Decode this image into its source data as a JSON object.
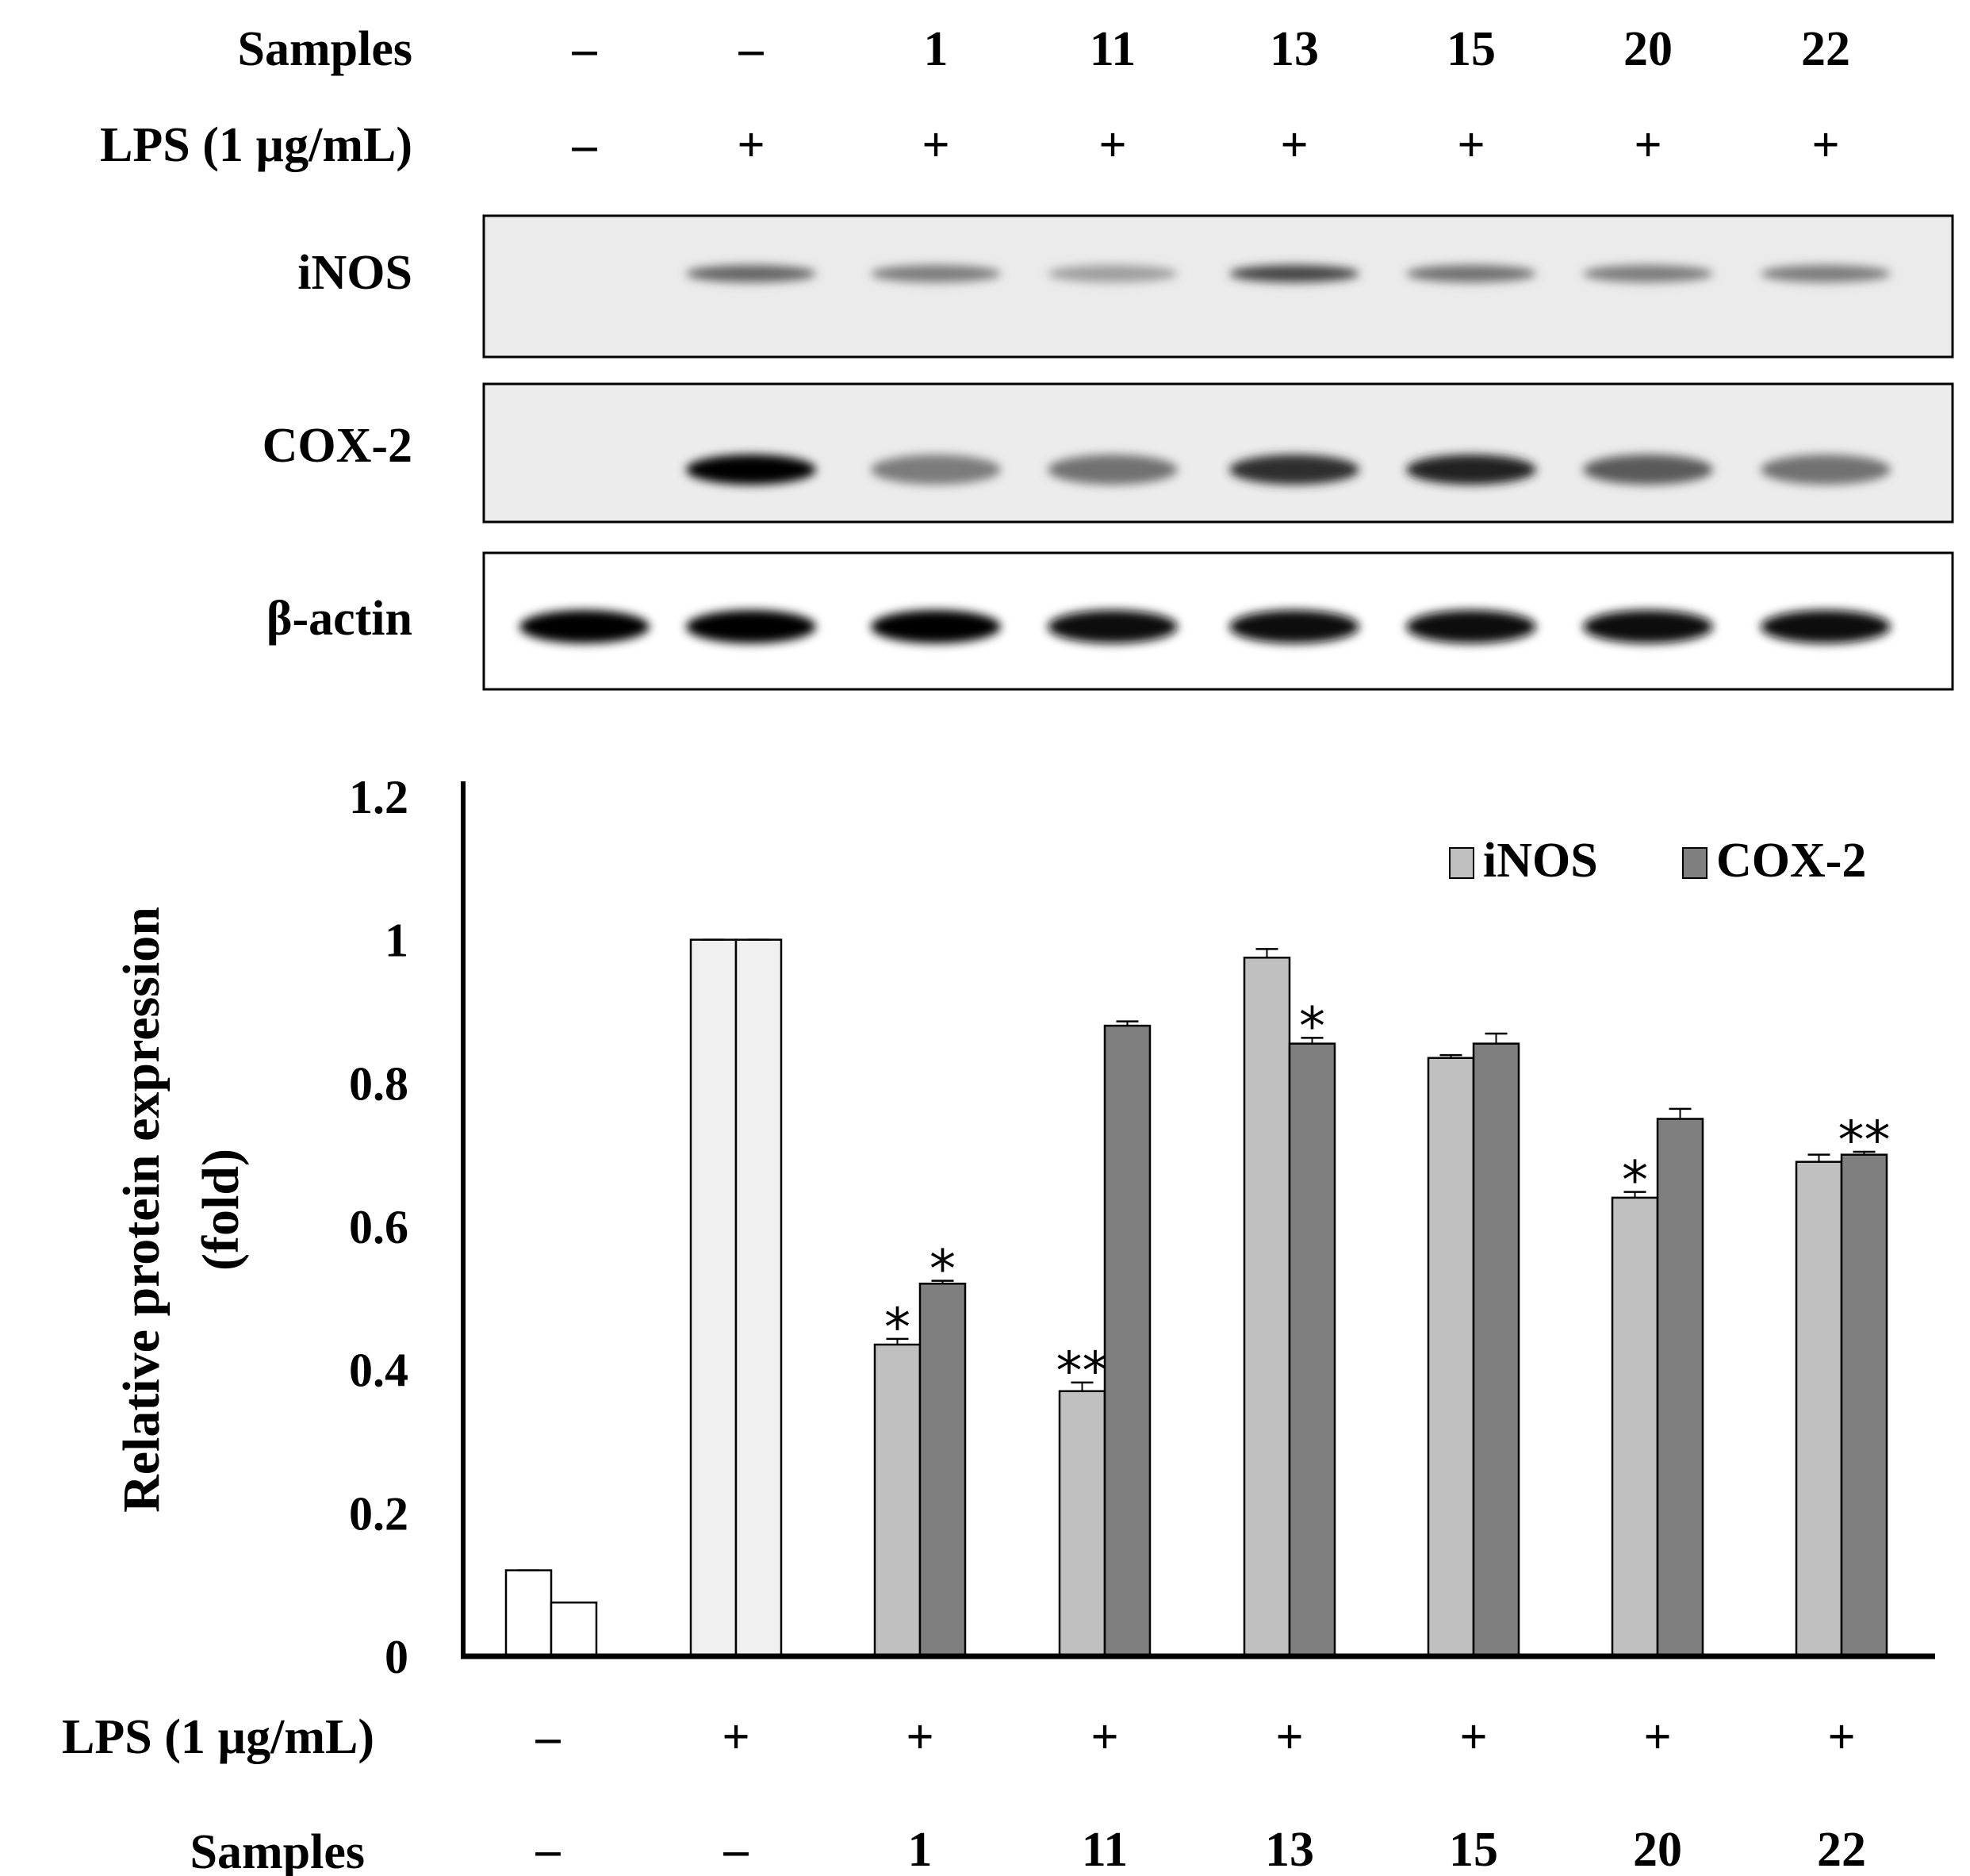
{
  "blot": {
    "header_rows": [
      {
        "label": "Samples",
        "values": [
          "–",
          "–",
          "1",
          "11",
          "13",
          "15",
          "20",
          "22"
        ]
      },
      {
        "label": "LPS (1 µg/mL)",
        "values": [
          "–",
          "+",
          "+",
          "+",
          "+",
          "+",
          "+",
          "+"
        ]
      }
    ],
    "panels": [
      {
        "label": "iNOS",
        "band_intensity": [
          0.0,
          0.55,
          0.45,
          0.3,
          0.7,
          0.5,
          0.45,
          0.45
        ]
      },
      {
        "label": "COX-2",
        "band_intensity": [
          0.0,
          1.0,
          0.45,
          0.5,
          0.8,
          0.85,
          0.6,
          0.5
        ]
      },
      {
        "label": "β-actin",
        "band_intensity": [
          1.0,
          1.0,
          1.0,
          0.95,
          0.95,
          0.95,
          0.95,
          0.95
        ]
      }
    ]
  },
  "chart_data": {
    "type": "bar",
    "categories": [
      "1",
      "2",
      "3",
      "4",
      "5",
      "6",
      "7",
      "8"
    ],
    "ylabel": "Relative protein expression (fold)",
    "ylim": [
      0,
      1.2
    ],
    "yticks": [
      "0",
      "0.2",
      "0.4",
      "0.6",
      "0.8",
      "1",
      "1.2"
    ],
    "grid": false,
    "legend_position": "top-right",
    "series": [
      {
        "name": "iNOS",
        "color": "#c0c0c0",
        "values": [
          0.12,
          1.0,
          0.435,
          0.37,
          0.975,
          0.835,
          0.64,
          0.69
        ],
        "errors": [
          0.0,
          0.0,
          0.008,
          0.012,
          0.012,
          0.004,
          0.008,
          0.01
        ],
        "significance": [
          "",
          "",
          "*",
          "**",
          "",
          "",
          "*",
          ""
        ]
      },
      {
        "name": "COX-2",
        "color": "#7f7f7f",
        "values": [
          0.075,
          1.0,
          0.52,
          0.88,
          0.855,
          0.855,
          0.75,
          0.7
        ],
        "errors": [
          0.0,
          0.0,
          0.004,
          0.006,
          0.008,
          0.014,
          0.014,
          0.004
        ],
        "significance": [
          "",
          "",
          "*",
          "",
          "*",
          "",
          "",
          "**"
        ]
      }
    ],
    "control_colors": [
      "#ffffff",
      "#f0f0f0"
    ],
    "x_rows": [
      {
        "label": "LPS (1 µg/mL)",
        "values": [
          "–",
          "+",
          "+",
          "+",
          "+",
          "+",
          "+",
          "+"
        ]
      },
      {
        "label": "Samples",
        "values": [
          "–",
          "–",
          "1",
          "11",
          "13",
          "15",
          "20",
          "22"
        ]
      }
    ]
  }
}
